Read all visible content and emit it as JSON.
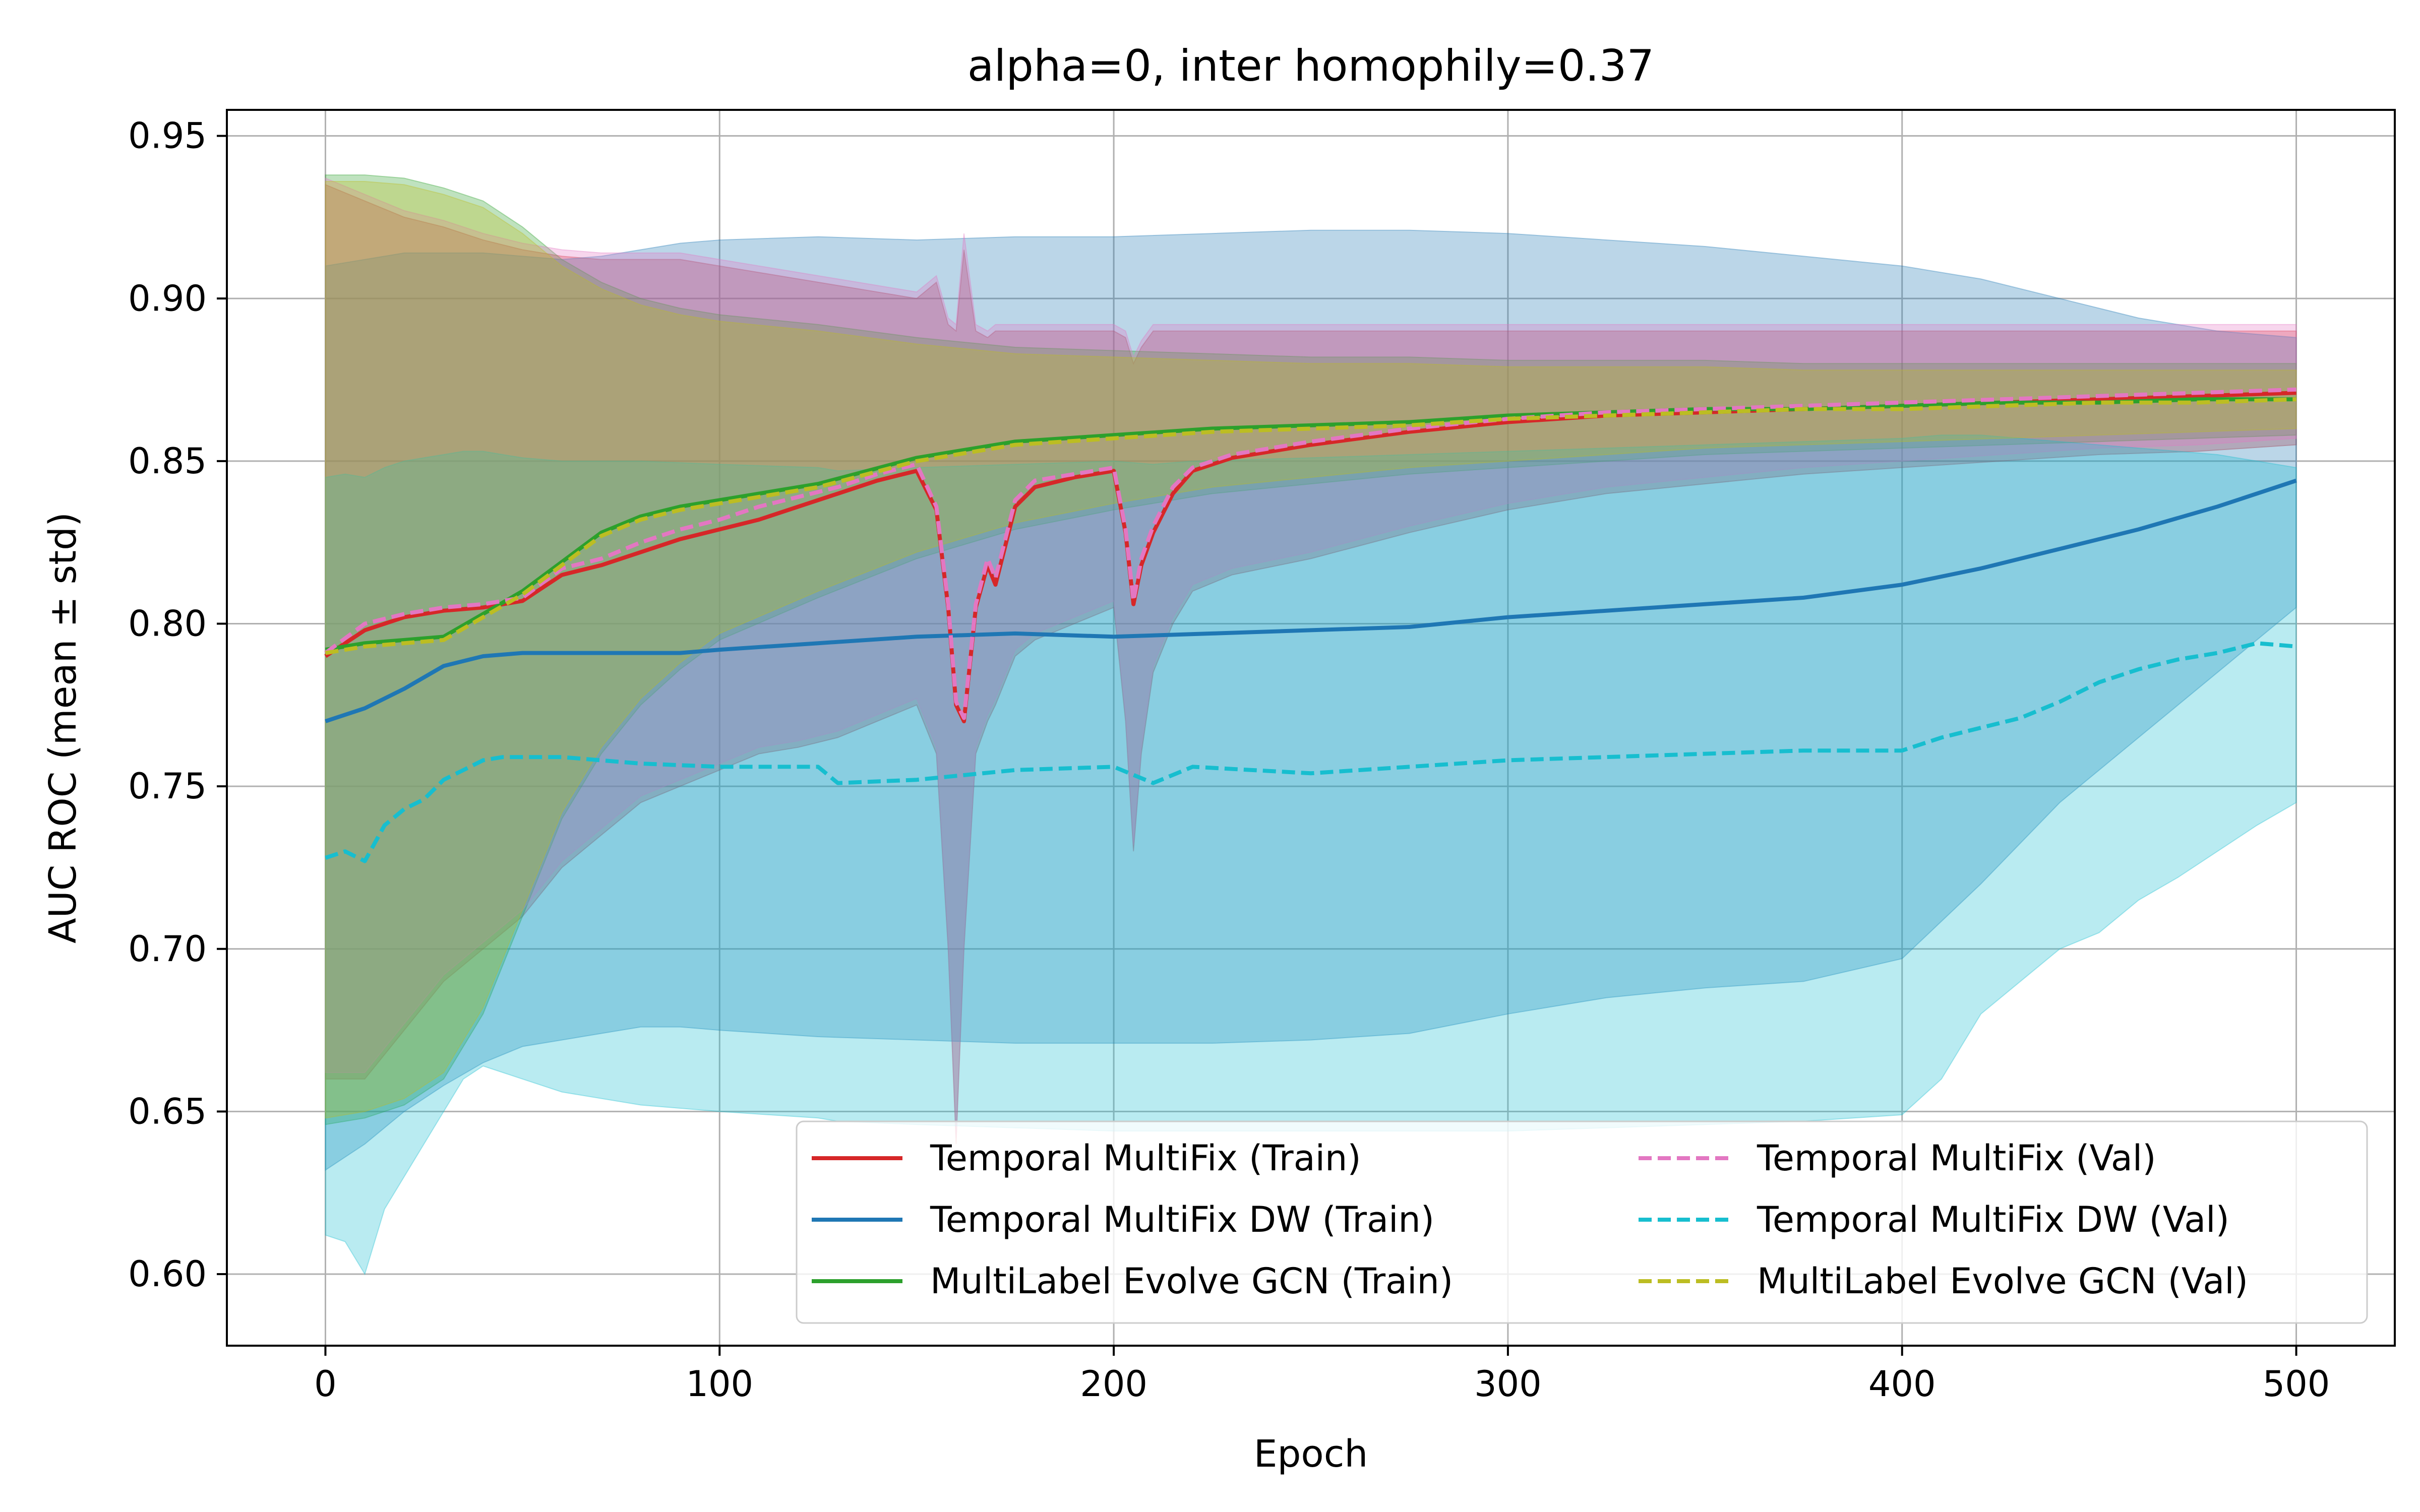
{
  "chart_data": {
    "type": "line",
    "title": "alpha=0, inter homophily=0.37",
    "xlabel": "Epoch",
    "ylabel": "AUC ROC (mean ± std)",
    "xlim": [
      -25,
      525
    ],
    "ylim": [
      0.578,
      0.958
    ],
    "xticks": [
      0,
      100,
      200,
      300,
      400,
      500
    ],
    "yticks": [
      0.6,
      0.65,
      0.7,
      0.75,
      0.8,
      0.85,
      0.9,
      0.95
    ],
    "xtick_labels": [
      "0",
      "100",
      "200",
      "300",
      "400",
      "500"
    ],
    "ytick_labels": [
      "0.60",
      "0.65",
      "0.70",
      "0.75",
      "0.80",
      "0.85",
      "0.90",
      "0.95"
    ],
    "grid": true,
    "legend_position": "lower-right",
    "legend_columns": 2,
    "series": [
      {
        "name": "Temporal MultiFix (Train)",
        "color": "#d62728",
        "dash": "solid",
        "x": [
          0,
          10,
          20,
          30,
          40,
          50,
          60,
          70,
          80,
          90,
          100,
          110,
          120,
          130,
          140,
          150,
          155,
          158,
          160,
          162,
          165,
          168,
          170,
          175,
          180,
          190,
          200,
          203,
          205,
          207,
          210,
          215,
          220,
          230,
          250,
          275,
          300,
          325,
          350,
          375,
          400,
          425,
          450,
          475,
          500
        ],
        "y": [
          0.79,
          0.798,
          0.802,
          0.804,
          0.805,
          0.807,
          0.815,
          0.818,
          0.822,
          0.826,
          0.829,
          0.832,
          0.836,
          0.84,
          0.844,
          0.847,
          0.835,
          0.805,
          0.775,
          0.77,
          0.805,
          0.818,
          0.812,
          0.836,
          0.842,
          0.845,
          0.847,
          0.828,
          0.806,
          0.818,
          0.828,
          0.84,
          0.847,
          0.851,
          0.855,
          0.859,
          0.862,
          0.864,
          0.865,
          0.866,
          0.867,
          0.868,
          0.869,
          0.87,
          0.871
        ],
        "lower": [
          0.66,
          0.66,
          0.675,
          0.69,
          0.7,
          0.71,
          0.725,
          0.735,
          0.745,
          0.75,
          0.755,
          0.76,
          0.762,
          0.765,
          0.77,
          0.775,
          0.76,
          0.7,
          0.64,
          0.7,
          0.76,
          0.77,
          0.775,
          0.79,
          0.795,
          0.8,
          0.805,
          0.77,
          0.73,
          0.76,
          0.785,
          0.8,
          0.81,
          0.815,
          0.82,
          0.828,
          0.835,
          0.84,
          0.843,
          0.846,
          0.848,
          0.85,
          0.852,
          0.853,
          0.855
        ],
        "upper": [
          0.935,
          0.93,
          0.925,
          0.922,
          0.918,
          0.915,
          0.913,
          0.912,
          0.912,
          0.912,
          0.91,
          0.908,
          0.906,
          0.904,
          0.902,
          0.9,
          0.905,
          0.892,
          0.89,
          0.915,
          0.89,
          0.888,
          0.89,
          0.89,
          0.89,
          0.89,
          0.89,
          0.888,
          0.88,
          0.885,
          0.89,
          0.89,
          0.89,
          0.89,
          0.89,
          0.89,
          0.89,
          0.89,
          0.89,
          0.89,
          0.89,
          0.89,
          0.89,
          0.89,
          0.89
        ]
      },
      {
        "name": "Temporal MultiFix DW (Train)",
        "color": "#1f77b4",
        "dash": "solid",
        "x": [
          0,
          10,
          20,
          30,
          40,
          50,
          60,
          70,
          80,
          90,
          100,
          125,
          150,
          175,
          200,
          225,
          250,
          275,
          300,
          325,
          350,
          375,
          400,
          420,
          440,
          460,
          480,
          500
        ],
        "y": [
          0.77,
          0.774,
          0.78,
          0.787,
          0.79,
          0.791,
          0.791,
          0.791,
          0.791,
          0.791,
          0.792,
          0.794,
          0.796,
          0.797,
          0.796,
          0.797,
          0.798,
          0.799,
          0.802,
          0.804,
          0.806,
          0.808,
          0.812,
          0.817,
          0.823,
          0.829,
          0.836,
          0.844
        ],
        "lower": [
          0.632,
          0.64,
          0.65,
          0.658,
          0.665,
          0.67,
          0.672,
          0.674,
          0.676,
          0.676,
          0.675,
          0.673,
          0.672,
          0.671,
          0.671,
          0.671,
          0.672,
          0.674,
          0.68,
          0.685,
          0.688,
          0.69,
          0.697,
          0.72,
          0.745,
          0.765,
          0.785,
          0.805
        ],
        "upper": [
          0.91,
          0.912,
          0.914,
          0.914,
          0.914,
          0.913,
          0.912,
          0.913,
          0.915,
          0.917,
          0.918,
          0.919,
          0.918,
          0.919,
          0.919,
          0.92,
          0.921,
          0.921,
          0.92,
          0.918,
          0.916,
          0.913,
          0.91,
          0.906,
          0.9,
          0.894,
          0.89,
          0.888
        ]
      },
      {
        "name": "MultiLabel Evolve GCN (Train)",
        "color": "#2ca02c",
        "dash": "solid",
        "x": [
          0,
          10,
          20,
          30,
          40,
          50,
          60,
          70,
          80,
          90,
          100,
          125,
          150,
          175,
          200,
          225,
          250,
          275,
          300,
          325,
          350,
          375,
          400,
          425,
          450,
          475,
          500
        ],
        "y": [
          0.792,
          0.794,
          0.795,
          0.796,
          0.803,
          0.81,
          0.819,
          0.828,
          0.833,
          0.836,
          0.838,
          0.843,
          0.851,
          0.856,
          0.858,
          0.86,
          0.861,
          0.862,
          0.864,
          0.865,
          0.866,
          0.866,
          0.867,
          0.868,
          0.868,
          0.869,
          0.869
        ],
        "lower": [
          0.646,
          0.648,
          0.652,
          0.66,
          0.68,
          0.71,
          0.74,
          0.76,
          0.775,
          0.786,
          0.795,
          0.808,
          0.82,
          0.829,
          0.835,
          0.84,
          0.843,
          0.846,
          0.848,
          0.85,
          0.852,
          0.853,
          0.854,
          0.855,
          0.856,
          0.857,
          0.858
        ],
        "upper": [
          0.938,
          0.938,
          0.937,
          0.934,
          0.93,
          0.922,
          0.912,
          0.905,
          0.9,
          0.897,
          0.895,
          0.892,
          0.888,
          0.885,
          0.884,
          0.883,
          0.882,
          0.882,
          0.881,
          0.881,
          0.881,
          0.88,
          0.88,
          0.88,
          0.88,
          0.88,
          0.88
        ]
      },
      {
        "name": "Temporal MultiFix (Val)",
        "color": "#e377c2",
        "dash": "dashed",
        "x": [
          0,
          10,
          20,
          30,
          40,
          50,
          60,
          70,
          80,
          90,
          100,
          110,
          120,
          130,
          140,
          150,
          155,
          158,
          160,
          162,
          165,
          168,
          170,
          175,
          180,
          190,
          200,
          203,
          205,
          207,
          210,
          215,
          220,
          230,
          250,
          275,
          300,
          325,
          350,
          375,
          400,
          425,
          450,
          475,
          500
        ],
        "y": [
          0.791,
          0.8,
          0.803,
          0.805,
          0.806,
          0.808,
          0.817,
          0.82,
          0.825,
          0.829,
          0.832,
          0.836,
          0.839,
          0.842,
          0.846,
          0.849,
          0.836,
          0.806,
          0.776,
          0.771,
          0.806,
          0.82,
          0.814,
          0.838,
          0.844,
          0.846,
          0.848,
          0.829,
          0.807,
          0.82,
          0.83,
          0.842,
          0.848,
          0.852,
          0.856,
          0.86,
          0.863,
          0.865,
          0.866,
          0.867,
          0.868,
          0.869,
          0.87,
          0.871,
          0.872
        ],
        "lower": [
          0.662,
          0.662,
          0.677,
          0.692,
          0.702,
          0.712,
          0.727,
          0.737,
          0.747,
          0.752,
          0.757,
          0.762,
          0.764,
          0.767,
          0.772,
          0.777,
          0.762,
          0.702,
          0.642,
          0.702,
          0.762,
          0.772,
          0.777,
          0.792,
          0.797,
          0.802,
          0.807,
          0.772,
          0.732,
          0.762,
          0.787,
          0.802,
          0.812,
          0.817,
          0.822,
          0.83,
          0.837,
          0.842,
          0.845,
          0.848,
          0.85,
          0.852,
          0.854,
          0.855,
          0.857
        ],
        "upper": [
          0.937,
          0.932,
          0.927,
          0.924,
          0.92,
          0.917,
          0.915,
          0.914,
          0.914,
          0.914,
          0.912,
          0.91,
          0.908,
          0.906,
          0.904,
          0.902,
          0.907,
          0.894,
          0.892,
          0.92,
          0.892,
          0.89,
          0.892,
          0.892,
          0.892,
          0.892,
          0.892,
          0.89,
          0.882,
          0.887,
          0.892,
          0.892,
          0.892,
          0.892,
          0.892,
          0.892,
          0.892,
          0.892,
          0.892,
          0.892,
          0.892,
          0.892,
          0.892,
          0.892,
          0.892
        ]
      },
      {
        "name": "Temporal MultiFix DW (Val)",
        "color": "#17becf",
        "dash": "dashed",
        "x": [
          0,
          5,
          10,
          15,
          20,
          25,
          30,
          35,
          40,
          45,
          50,
          60,
          80,
          100,
          125,
          130,
          150,
          175,
          200,
          210,
          220,
          250,
          275,
          300,
          325,
          350,
          375,
          400,
          410,
          420,
          430,
          440,
          450,
          460,
          470,
          480,
          490,
          500
        ],
        "y": [
          0.728,
          0.73,
          0.727,
          0.738,
          0.743,
          0.746,
          0.752,
          0.755,
          0.758,
          0.759,
          0.759,
          0.759,
          0.757,
          0.756,
          0.756,
          0.751,
          0.752,
          0.755,
          0.756,
          0.751,
          0.756,
          0.754,
          0.756,
          0.758,
          0.759,
          0.76,
          0.761,
          0.761,
          0.765,
          0.768,
          0.771,
          0.776,
          0.782,
          0.786,
          0.789,
          0.791,
          0.794,
          0.793
        ],
        "lower": [
          0.612,
          0.61,
          0.6,
          0.62,
          0.63,
          0.64,
          0.65,
          0.66,
          0.664,
          0.662,
          0.66,
          0.656,
          0.652,
          0.65,
          0.648,
          0.647,
          0.646,
          0.645,
          0.644,
          0.644,
          0.644,
          0.644,
          0.644,
          0.644,
          0.645,
          0.646,
          0.647,
          0.649,
          0.66,
          0.68,
          0.69,
          0.7,
          0.705,
          0.715,
          0.722,
          0.73,
          0.738,
          0.745
        ],
        "upper": [
          0.845,
          0.846,
          0.845,
          0.848,
          0.85,
          0.851,
          0.852,
          0.853,
          0.853,
          0.852,
          0.851,
          0.85,
          0.85,
          0.849,
          0.848,
          0.847,
          0.848,
          0.849,
          0.85,
          0.849,
          0.85,
          0.851,
          0.852,
          0.853,
          0.854,
          0.855,
          0.856,
          0.857,
          0.858,
          0.858,
          0.857,
          0.856,
          0.855,
          0.854,
          0.853,
          0.852,
          0.85,
          0.848
        ]
      },
      {
        "name": "MultiLabel Evolve GCN (Val)",
        "color": "#bcbd22",
        "dash": "dashed",
        "x": [
          0,
          10,
          20,
          30,
          40,
          50,
          60,
          70,
          80,
          90,
          100,
          125,
          150,
          175,
          200,
          225,
          250,
          275,
          300,
          325,
          350,
          375,
          400,
          425,
          450,
          475,
          500
        ],
        "y": [
          0.791,
          0.793,
          0.794,
          0.795,
          0.802,
          0.809,
          0.818,
          0.827,
          0.832,
          0.835,
          0.837,
          0.842,
          0.85,
          0.855,
          0.857,
          0.859,
          0.86,
          0.861,
          0.863,
          0.864,
          0.865,
          0.866,
          0.866,
          0.867,
          0.868,
          0.868,
          0.869
        ],
        "lower": [
          0.648,
          0.65,
          0.654,
          0.662,
          0.682,
          0.712,
          0.742,
          0.762,
          0.777,
          0.788,
          0.797,
          0.81,
          0.822,
          0.831,
          0.837,
          0.842,
          0.845,
          0.848,
          0.85,
          0.852,
          0.854,
          0.855,
          0.856,
          0.857,
          0.858,
          0.859,
          0.86
        ],
        "upper": [
          0.936,
          0.936,
          0.935,
          0.932,
          0.928,
          0.92,
          0.91,
          0.903,
          0.898,
          0.895,
          0.893,
          0.89,
          0.886,
          0.883,
          0.882,
          0.881,
          0.88,
          0.88,
          0.879,
          0.879,
          0.879,
          0.878,
          0.878,
          0.878,
          0.878,
          0.878,
          0.878
        ]
      }
    ]
  }
}
